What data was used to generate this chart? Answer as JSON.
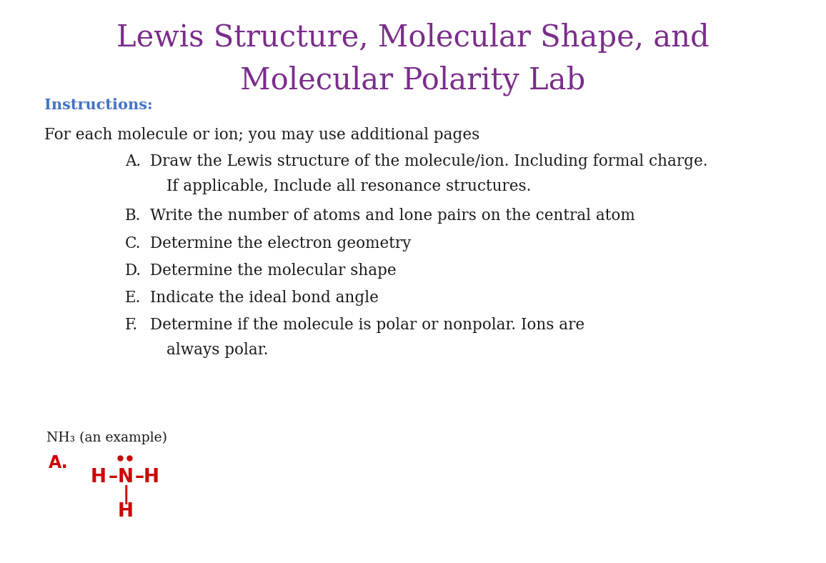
{
  "title_line1": "Lewis Structure, Molecular Shape, and",
  "title_line2": "Molecular Polarity Lab",
  "title_color": "#7B2D8B",
  "title_fontsize": 30,
  "instructions_label": "Instructions:",
  "instructions_color": "#4472C4",
  "instructions_fontsize": 15,
  "body_color": "#1a1a1a",
  "body_fontsize": 15.5,
  "intro_text": "For each molecule or ion; you may use additional pages",
  "items": [
    {
      "label": "A.",
      "text": "Draw the Lewis structure of the molecule/ion. Including formal charge.",
      "continuation": "If applicable, Include all resonance structures."
    },
    {
      "label": "B.",
      "text": "Write the number of atoms and lone pairs on the central atom",
      "continuation": null
    },
    {
      "label": "C.",
      "text": "Determine the electron geometry",
      "continuation": null
    },
    {
      "label": "D.",
      "text": "Determine the molecular shape",
      "continuation": null
    },
    {
      "label": "E.",
      "text": "Indicate the ideal bond angle",
      "continuation": null
    },
    {
      "label": "F.",
      "text": "Determine if the molecule is polar or nonpolar. Ions are",
      "continuation": "always polar."
    }
  ],
  "example_label_black": "NH",
  "example_label_sub": "3",
  "example_label_rest": " (an example)",
  "example_color": "#1a1a1a",
  "example_fontsize": 13.5,
  "red_color": "#CC0000",
  "background_color": "#ffffff",
  "figsize": [
    11.56,
    7.88
  ],
  "dpi": 100
}
